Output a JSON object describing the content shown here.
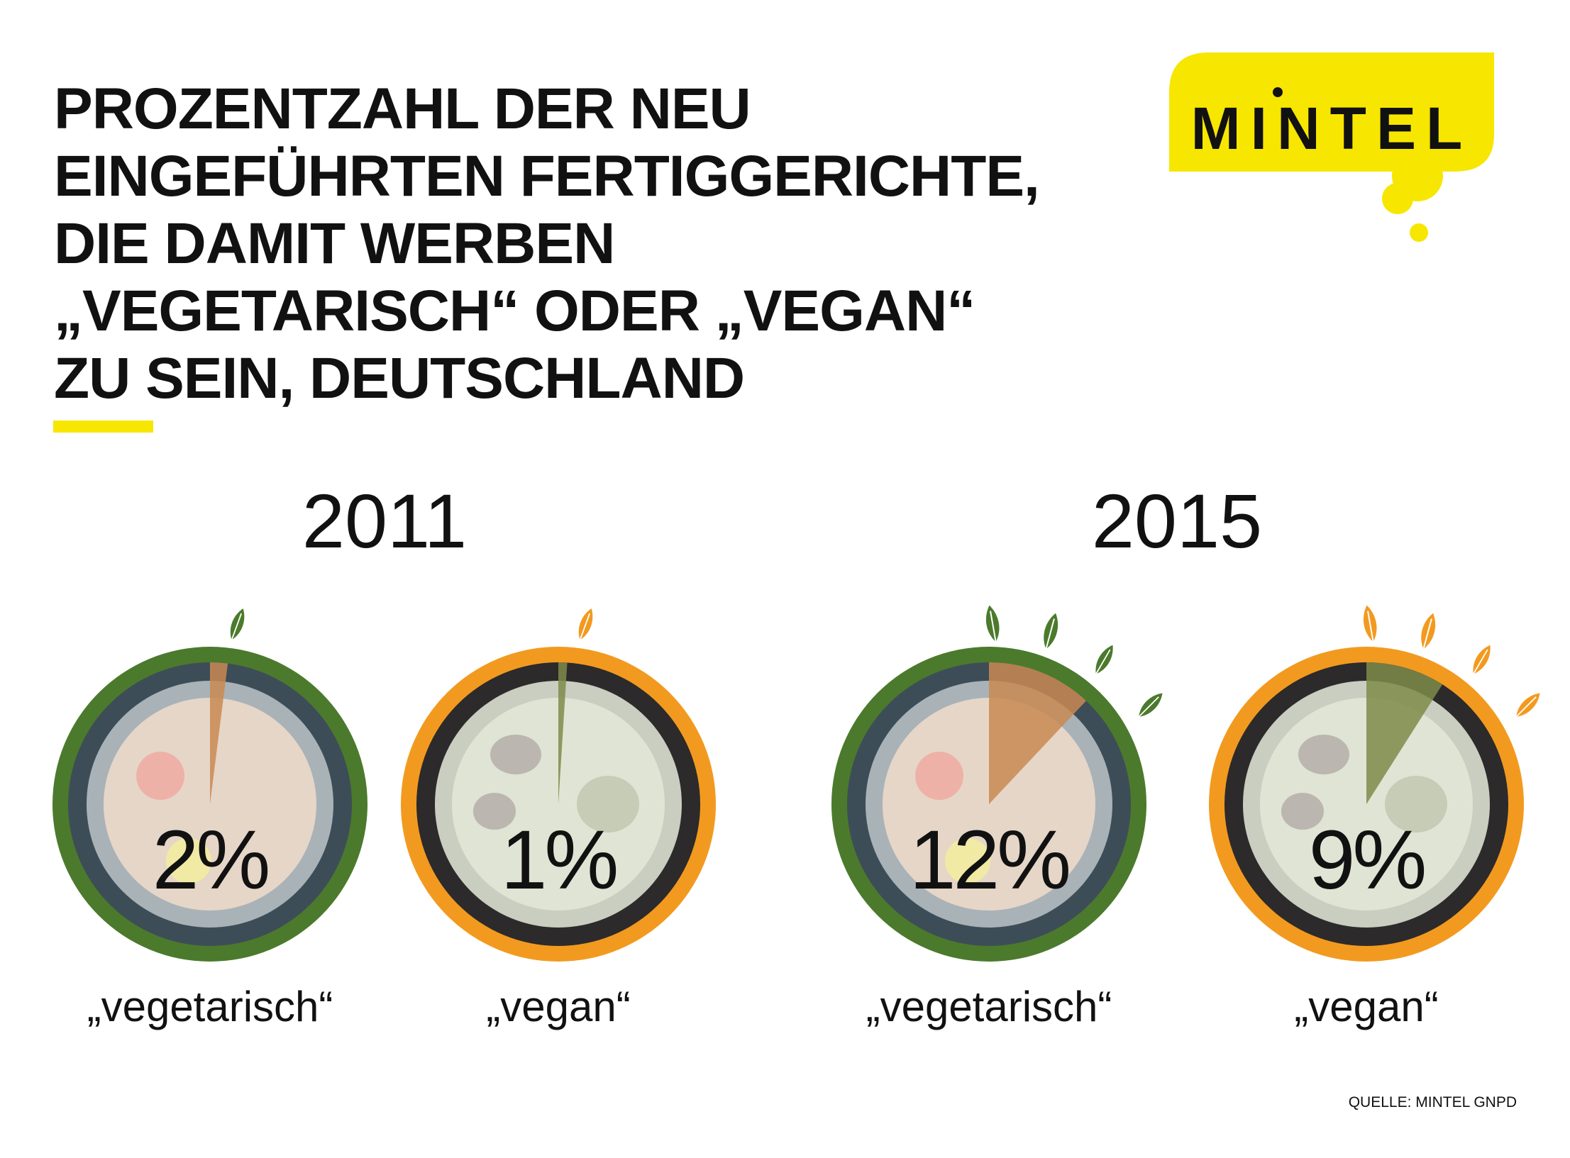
{
  "title_lines": [
    "PROZENTZAHL DER NEU",
    "EINGEFÜHRTEN FERTIGGERICHTE,",
    "DIE DAMIT WERBEN",
    "„VEGETARISCH“ ODER „VEGAN“",
    "ZU SEIN, DEUTSCHLAND"
  ],
  "logo_text": "MINTEL",
  "source": "QUELLE: MINTEL GNPD",
  "colors": {
    "vegetarisch": "#4b7a2c",
    "vegan": "#f29a1f",
    "brand_yellow": "#f7e600"
  },
  "chart_data": {
    "type": "pie",
    "groups": [
      "2011",
      "2015"
    ],
    "items": [
      {
        "year": "2011",
        "label": "„vegetarisch“",
        "value": 2,
        "display": "2%"
      },
      {
        "year": "2011",
        "label": "„vegan“",
        "value": 1,
        "display": "1%"
      },
      {
        "year": "2015",
        "label": "„vegetarisch“",
        "value": 12,
        "display": "12%"
      },
      {
        "year": "2015",
        "label": "„vegan“",
        "value": 9,
        "display": "9%"
      }
    ]
  }
}
